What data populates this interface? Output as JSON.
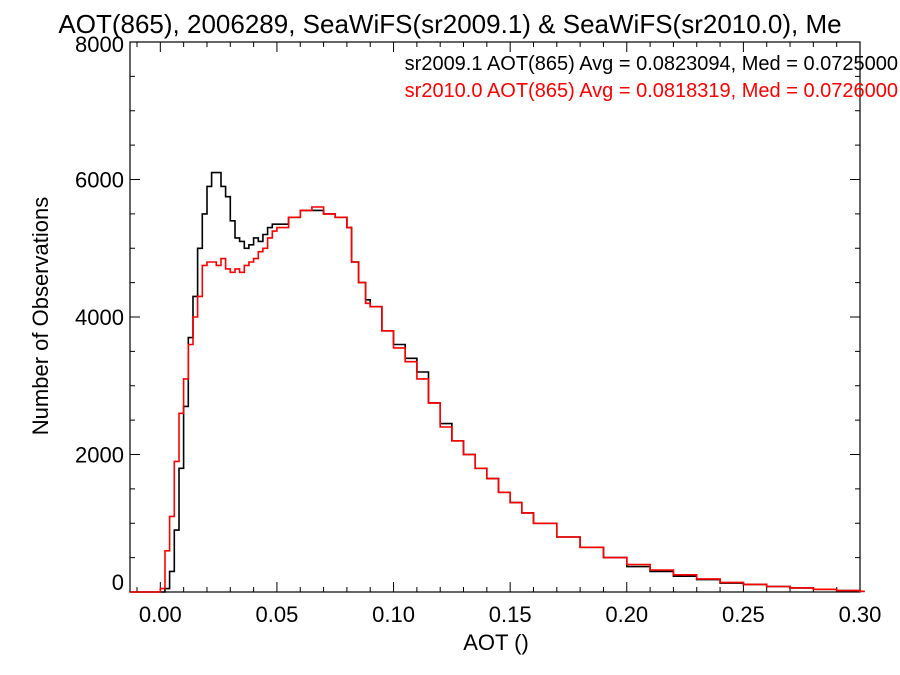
{
  "chart_data": {
    "type": "line",
    "title": "AOT(865), 2006289, SeaWiFS(sr2009.1) & SeaWiFS(sr2010.0), Me",
    "xlabel": "AOT ()",
    "ylabel": "Number of Observations",
    "xlim": [
      -0.013,
      0.3
    ],
    "ylim": [
      0,
      8000
    ],
    "x_ticks": [
      0.0,
      0.05,
      0.1,
      0.15,
      0.2,
      0.25,
      0.3
    ],
    "x_tick_labels": [
      "0.00",
      "0.05",
      "0.10",
      "0.15",
      "0.20",
      "0.25",
      "0.30"
    ],
    "y_ticks": [
      0,
      2000,
      4000,
      6000,
      8000
    ],
    "y_tick_labels": [
      "0",
      "2000",
      "4000",
      "6000",
      "8000"
    ],
    "grid": false,
    "legend_position": "top-right",
    "annotations": [
      {
        "text": "sr2009.1 AOT(865) Avg = 0.0823094, Med = 0.0725000",
        "color": "#000000"
      },
      {
        "text": "sr2010.0 AOT(865) Avg = 0.0818319, Med = 0.0726000",
        "color": "#ff0000"
      }
    ],
    "series": [
      {
        "color": "#000000",
        "x": [
          -0.013,
          0.0,
          0.002,
          0.004,
          0.006,
          0.008,
          0.01,
          0.012,
          0.014,
          0.016,
          0.018,
          0.02,
          0.022,
          0.024,
          0.026,
          0.028,
          0.03,
          0.032,
          0.034,
          0.036,
          0.038,
          0.04,
          0.042,
          0.044,
          0.046,
          0.048,
          0.05,
          0.055,
          0.06,
          0.065,
          0.07,
          0.075,
          0.08,
          0.082,
          0.085,
          0.088,
          0.09,
          0.095,
          0.1,
          0.105,
          0.11,
          0.113,
          0.115,
          0.12,
          0.125,
          0.13,
          0.135,
          0.14,
          0.145,
          0.15,
          0.155,
          0.16,
          0.17,
          0.18,
          0.19,
          0.2,
          0.21,
          0.22,
          0.23,
          0.24,
          0.25,
          0.26,
          0.27,
          0.28,
          0.29,
          0.3
        ],
        "y": [
          0,
          0,
          50,
          300,
          900,
          1800,
          2700,
          3700,
          4300,
          5000,
          5500,
          5900,
          6100,
          6100,
          5900,
          5750,
          5400,
          5150,
          5100,
          5000,
          5050,
          5150,
          5100,
          5200,
          5300,
          5350,
          5350,
          5450,
          5550,
          5550,
          5500,
          5450,
          5300,
          4800,
          4500,
          4250,
          4150,
          3800,
          3600,
          3400,
          3200,
          3200,
          2750,
          2450,
          2200,
          2000,
          1800,
          1650,
          1450,
          1300,
          1150,
          1000,
          800,
          650,
          500,
          370,
          300,
          230,
          180,
          130,
          110,
          80,
          60,
          40,
          20,
          10
        ]
      },
      {
        "color": "#ff0000",
        "x": [
          -0.013,
          -0.004,
          0.0,
          0.002,
          0.004,
          0.006,
          0.008,
          0.01,
          0.012,
          0.014,
          0.016,
          0.018,
          0.02,
          0.022,
          0.024,
          0.026,
          0.028,
          0.03,
          0.032,
          0.034,
          0.036,
          0.038,
          0.04,
          0.042,
          0.044,
          0.046,
          0.048,
          0.05,
          0.055,
          0.06,
          0.065,
          0.07,
          0.075,
          0.08,
          0.082,
          0.085,
          0.088,
          0.09,
          0.095,
          0.1,
          0.105,
          0.11,
          0.113,
          0.115,
          0.12,
          0.125,
          0.13,
          0.135,
          0.14,
          0.145,
          0.15,
          0.155,
          0.16,
          0.17,
          0.18,
          0.19,
          0.2,
          0.21,
          0.22,
          0.23,
          0.24,
          0.25,
          0.26,
          0.27,
          0.28,
          0.29,
          0.3
        ],
        "y": [
          0,
          0,
          50,
          600,
          1100,
          1900,
          2600,
          3100,
          3600,
          4000,
          4300,
          4750,
          4800,
          4800,
          4750,
          4850,
          4700,
          4650,
          4700,
          4650,
          4750,
          4800,
          4850,
          4950,
          5000,
          5150,
          5250,
          5300,
          5450,
          5550,
          5600,
          5500,
          5450,
          5300,
          4800,
          4500,
          4200,
          4150,
          3800,
          3550,
          3350,
          3100,
          3100,
          2750,
          2400,
          2200,
          2000,
          1800,
          1650,
          1450,
          1300,
          1150,
          1000,
          800,
          650,
          500,
          400,
          320,
          250,
          190,
          140,
          110,
          80,
          60,
          40,
          20,
          10
        ]
      }
    ]
  }
}
